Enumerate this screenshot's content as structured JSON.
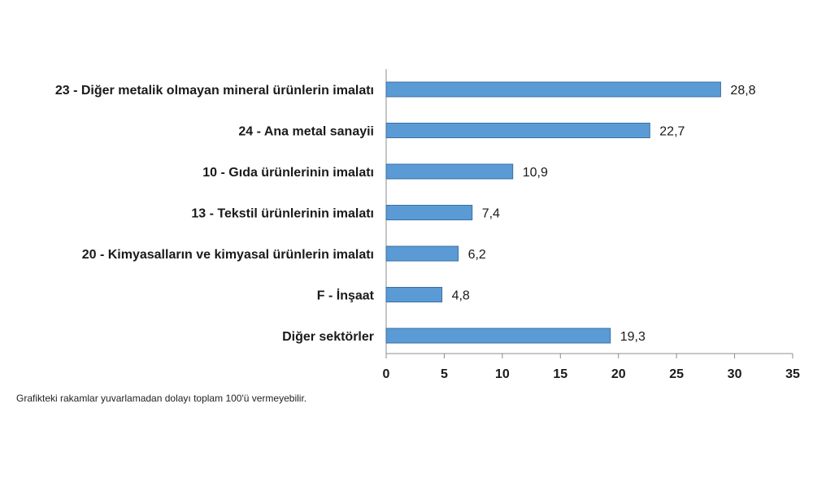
{
  "chart_data": {
    "type": "bar",
    "orientation": "horizontal",
    "categories": [
      "23 - Diğer metalik olmayan mineral ürünlerin imalatı",
      "24 - Ana metal sanayii",
      "10 - Gıda ürünlerinin imalatı",
      "13 - Tekstil ürünlerinin imalatı",
      "20 - Kimyasalların ve kimyasal ürünlerin imalatı",
      "F - İnşaat",
      "Diğer sektörler"
    ],
    "values": [
      28.8,
      22.7,
      10.9,
      7.4,
      6.2,
      4.8,
      19.3
    ],
    "value_labels": [
      "28,8",
      "22,7",
      "10,9",
      "7,4",
      "6,2",
      "4,8",
      "19,3"
    ],
    "xlim": [
      0,
      35
    ],
    "xticks": [
      0,
      5,
      10,
      15,
      20,
      25,
      30,
      35
    ],
    "grid": false,
    "bar_color": "#5b9bd5",
    "bar_edge_color": "#3a6fa3"
  },
  "footnote": "Grafikteki rakamlar yuvarlamadan dolayı toplam 100'ü vermeyebilir."
}
